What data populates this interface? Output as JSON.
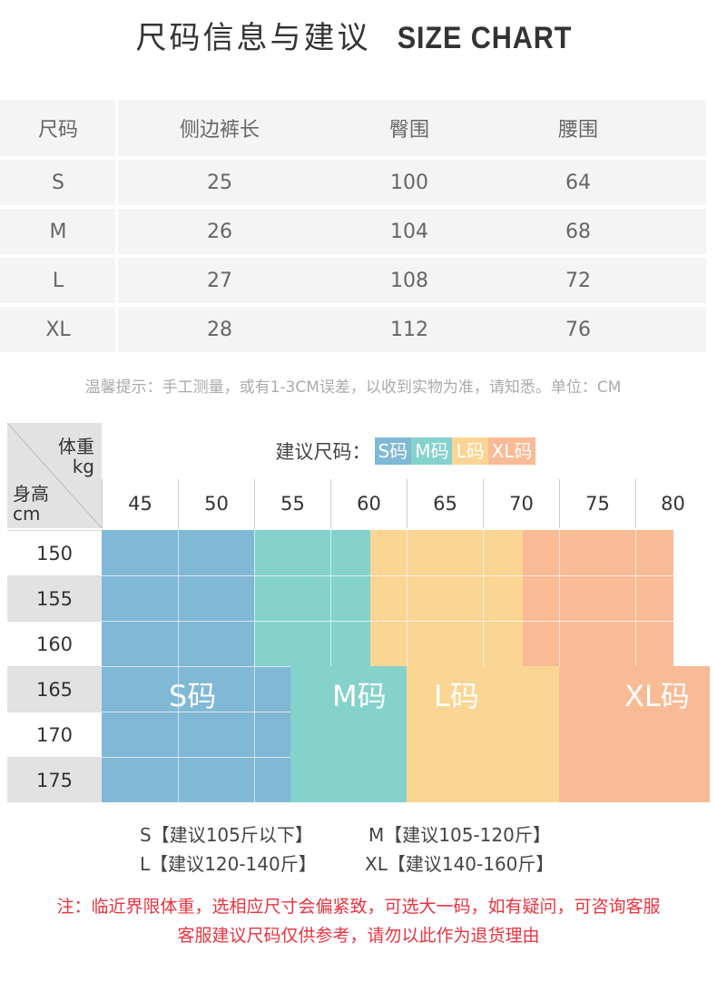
{
  "title": {
    "cn": "尺码信息与建议",
    "en": "SIZE CHART"
  },
  "size_table": {
    "headers": [
      "尺码",
      "侧边裤长",
      "臀围",
      "腰围"
    ],
    "rows": [
      [
        "S",
        "25",
        "100",
        "64"
      ],
      [
        "M",
        "26",
        "104",
        "68"
      ],
      [
        "L",
        "27",
        "108",
        "72"
      ],
      [
        "XL",
        "28",
        "112",
        "76"
      ]
    ]
  },
  "note": "温馨提示：手工测量，或有1-3CM误差，以收到实物为准，请知悉。单位：CM",
  "grid": {
    "corner": {
      "weight": "体重",
      "weight_unit": "kg",
      "height": "身高",
      "height_unit": "cm"
    },
    "legend_label": "建议尺码：",
    "legend": [
      {
        "label": "S码",
        "color": "#80b8d6"
      },
      {
        "label": "M码",
        "color": "#84d2cb"
      },
      {
        "label": "L码",
        "color": "#fbd593"
      },
      {
        "label": "XL码",
        "color": "#f8bb95"
      }
    ],
    "weights": [
      "45",
      "50",
      "55",
      "60",
      "65",
      "70",
      "75",
      "80"
    ],
    "heights": [
      "150",
      "155",
      "160",
      "165",
      "170",
      "175"
    ],
    "zone_labels": {
      "s": "S码",
      "m": "M码",
      "l": "L码",
      "xl": "XL码"
    }
  },
  "recommend": {
    "s": "S【建议105斤以下】",
    "m": "M【建议105-120斤】",
    "l": "L【建议120-140斤】",
    "xl": "XL【建议140-160斤】"
  },
  "warning": {
    "line1": "注：临近界限体重，选相应尺寸会偏紧致，可选大一码，如有疑问，可咨询客服",
    "line2": "客服建议尺码仅供参考，请勿以此作为退货理由"
  }
}
